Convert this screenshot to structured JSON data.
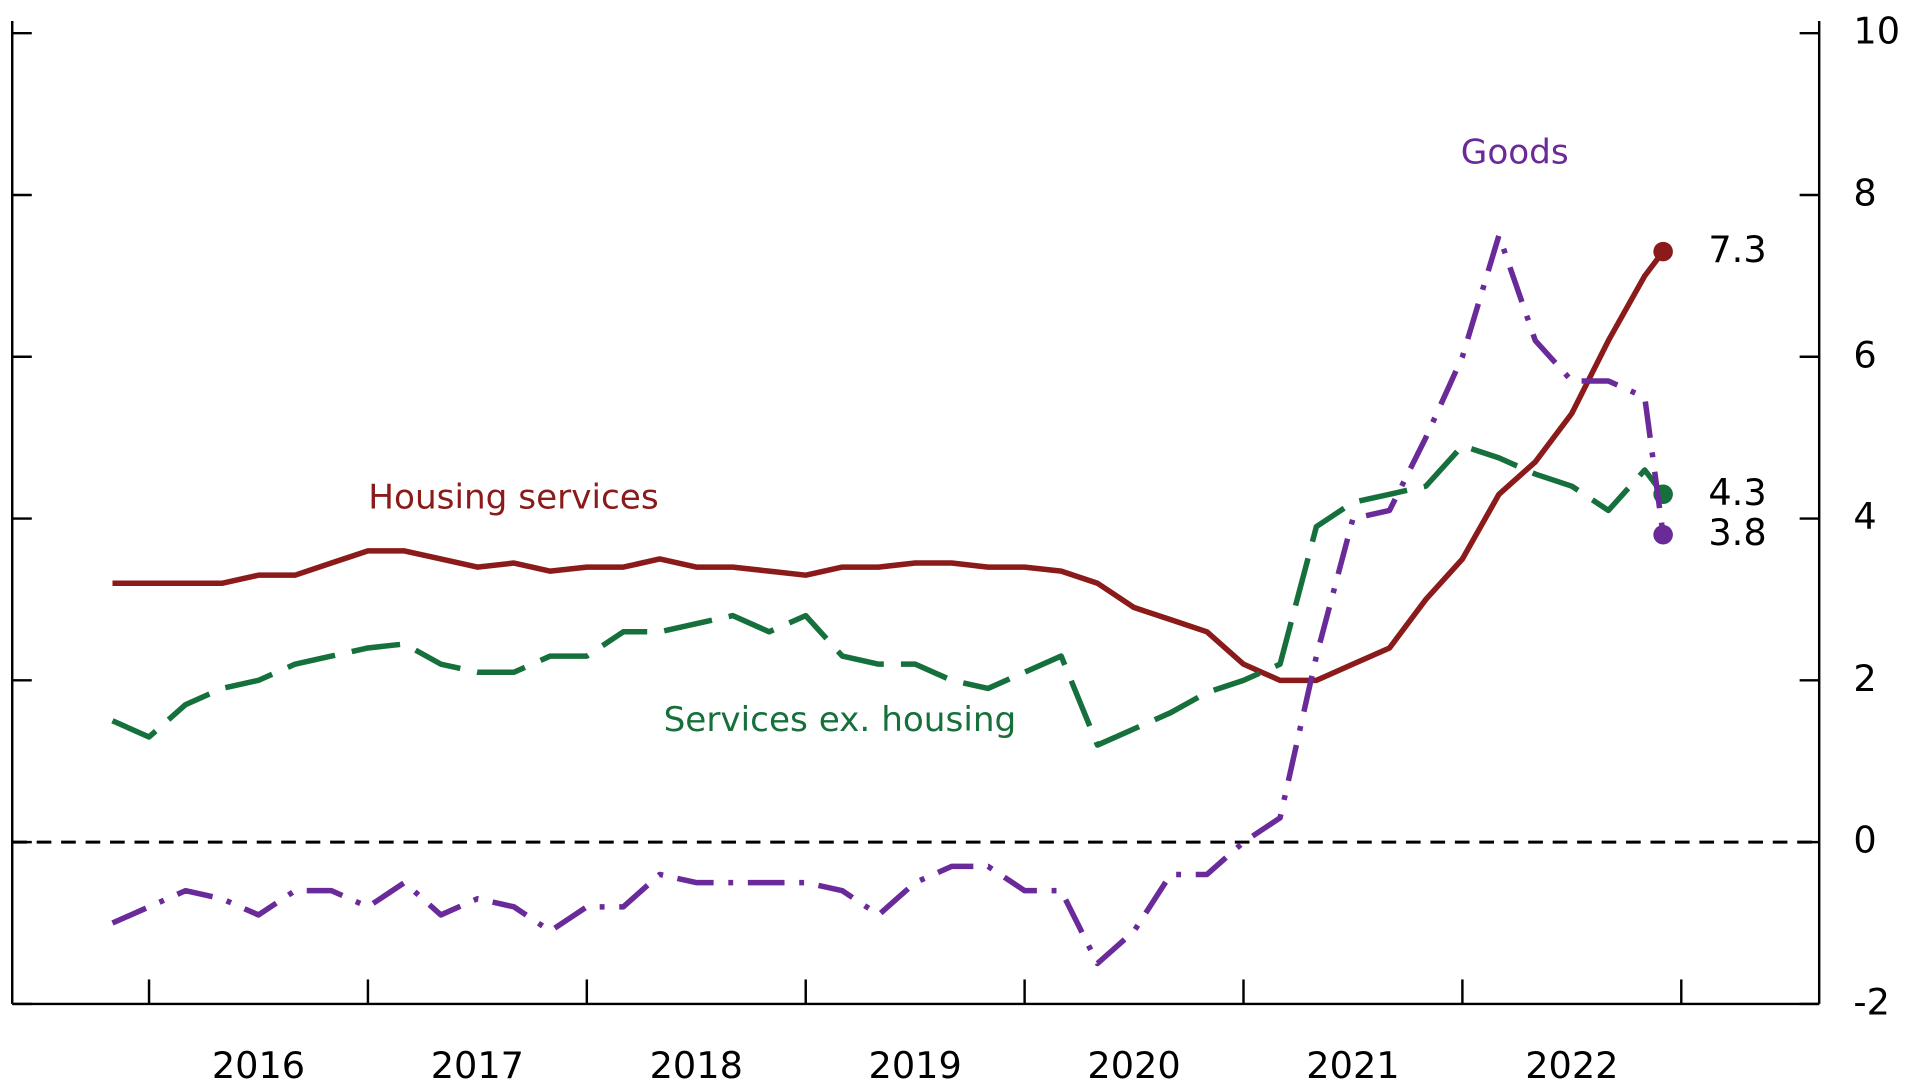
{
  "chart_data": {
    "type": "line",
    "x": [
      2015.833,
      2016.0,
      2016.167,
      2016.333,
      2016.5,
      2016.667,
      2016.833,
      2017.0,
      2017.167,
      2017.333,
      2017.5,
      2017.667,
      2017.833,
      2018.0,
      2018.167,
      2018.333,
      2018.5,
      2018.667,
      2018.833,
      2019.0,
      2019.167,
      2019.333,
      2019.5,
      2019.667,
      2019.833,
      2020.0,
      2020.167,
      2020.333,
      2020.5,
      2020.667,
      2020.833,
      2021.0,
      2021.167,
      2021.333,
      2021.5,
      2021.667,
      2021.833,
      2022.0,
      2022.167,
      2022.333,
      2022.5,
      2022.667,
      2022.833,
      2022.917
    ],
    "series": [
      {
        "name": "Housing services",
        "color": "#8b1a1a",
        "dash": "solid",
        "end_label": "7.3",
        "values": [
          3.2,
          3.2,
          3.2,
          3.2,
          3.3,
          3.3,
          3.45,
          3.6,
          3.6,
          3.5,
          3.4,
          3.45,
          3.35,
          3.4,
          3.4,
          3.5,
          3.4,
          3.4,
          3.35,
          3.3,
          3.4,
          3.4,
          3.45,
          3.45,
          3.4,
          3.4,
          3.35,
          3.2,
          2.9,
          2.75,
          2.6,
          2.2,
          2.0,
          2.0,
          2.2,
          2.4,
          3.0,
          3.5,
          4.3,
          4.7,
          5.3,
          6.2,
          7.0,
          7.3
        ]
      },
      {
        "name": "Services ex. housing",
        "color": "#16703c",
        "dash": "dash",
        "end_label": "4.3",
        "values": [
          1.5,
          1.3,
          1.7,
          1.9,
          2.0,
          2.2,
          2.3,
          2.4,
          2.45,
          2.2,
          2.1,
          2.1,
          2.3,
          2.3,
          2.6,
          2.6,
          2.7,
          2.8,
          2.6,
          2.8,
          2.3,
          2.2,
          2.2,
          2.0,
          1.9,
          2.1,
          2.3,
          1.2,
          1.4,
          1.6,
          1.85,
          2.0,
          2.2,
          3.9,
          4.2,
          4.3,
          4.4,
          4.9,
          4.75,
          4.55,
          4.4,
          4.1,
          4.6,
          4.3
        ]
      },
      {
        "name": "Goods",
        "color": "#6a2a9a",
        "dash": "dashdot",
        "end_label": "3.8",
        "values": [
          -1.0,
          -0.8,
          -0.6,
          -0.7,
          -0.9,
          -0.6,
          -0.6,
          -0.8,
          -0.5,
          -0.9,
          -0.7,
          -0.8,
          -1.1,
          -0.8,
          -0.8,
          -0.4,
          -0.5,
          -0.5,
          -0.5,
          -0.5,
          -0.6,
          -0.9,
          -0.5,
          -0.3,
          -0.3,
          -0.6,
          -0.6,
          -1.5,
          -1.1,
          -0.4,
          -0.4,
          0.0,
          0.3,
          2.3,
          4.0,
          4.1,
          5.0,
          6.0,
          7.5,
          6.2,
          5.7,
          5.7,
          5.5,
          3.8
        ]
      }
    ],
    "xlim": [
      2015.375,
      2023.63
    ],
    "xticks": [
      {
        "value": 2016.5,
        "label": "2016"
      },
      {
        "value": 2017.5,
        "label": "2017"
      },
      {
        "value": 2018.5,
        "label": "2018"
      },
      {
        "value": 2019.5,
        "label": "2019"
      },
      {
        "value": 2020.5,
        "label": "2020"
      },
      {
        "value": 2021.5,
        "label": "2021"
      },
      {
        "value": 2022.5,
        "label": "2022"
      }
    ],
    "xtick_marks": [
      2016,
      2017,
      2018,
      2019,
      2020,
      2021,
      2022,
      2023
    ],
    "ylim": [
      -2,
      10
    ],
    "yticks": [
      -2,
      0,
      2,
      4,
      6,
      8,
      10
    ],
    "zero_line": 0
  }
}
